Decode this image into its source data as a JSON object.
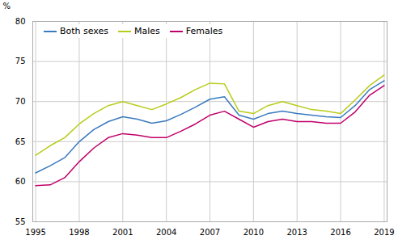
{
  "chart_data": {
    "type": "line",
    "ylabel": "%",
    "x": [
      1995,
      1996,
      1997,
      1998,
      1999,
      2000,
      2001,
      2002,
      2003,
      2004,
      2005,
      2006,
      2007,
      2008,
      2009,
      2010,
      2011,
      2012,
      2013,
      2014,
      2015,
      2016,
      2017,
      2018,
      2019
    ],
    "series": [
      {
        "name": "Both sexes",
        "color": "#3a7abf",
        "values": [
          61.1,
          62.0,
          63.0,
          65.0,
          66.5,
          67.5,
          68.1,
          67.8,
          67.3,
          67.6,
          68.4,
          69.3,
          70.3,
          70.6,
          68.3,
          67.8,
          68.5,
          68.8,
          68.5,
          68.3,
          68.1,
          68.0,
          69.5,
          71.5,
          72.6
        ]
      },
      {
        "name": "Males",
        "color": "#b8cc1a",
        "values": [
          63.3,
          64.5,
          65.5,
          67.2,
          68.5,
          69.5,
          70.0,
          69.5,
          69.0,
          69.7,
          70.5,
          71.5,
          72.3,
          72.2,
          68.8,
          68.5,
          69.5,
          70.0,
          69.5,
          69.0,
          68.8,
          68.5,
          70.2,
          72.0,
          73.3
        ]
      },
      {
        "name": "Females",
        "color": "#c0006a",
        "values": [
          59.5,
          59.6,
          60.5,
          62.5,
          64.2,
          65.5,
          66.0,
          65.8,
          65.5,
          65.5,
          66.3,
          67.2,
          68.3,
          68.8,
          67.8,
          66.8,
          67.5,
          67.8,
          67.5,
          67.5,
          67.3,
          67.3,
          68.7,
          70.8,
          72.0
        ]
      }
    ],
    "xlim": [
      1994.8,
      2019.2
    ],
    "xticks": [
      1995,
      1998,
      2001,
      2004,
      2007,
      2010,
      2013,
      2016,
      2019
    ],
    "ylim": [
      55,
      80
    ],
    "yticks": [
      55,
      60,
      65,
      70,
      75,
      80
    ],
    "grid": true,
    "legend": "upper left"
  }
}
